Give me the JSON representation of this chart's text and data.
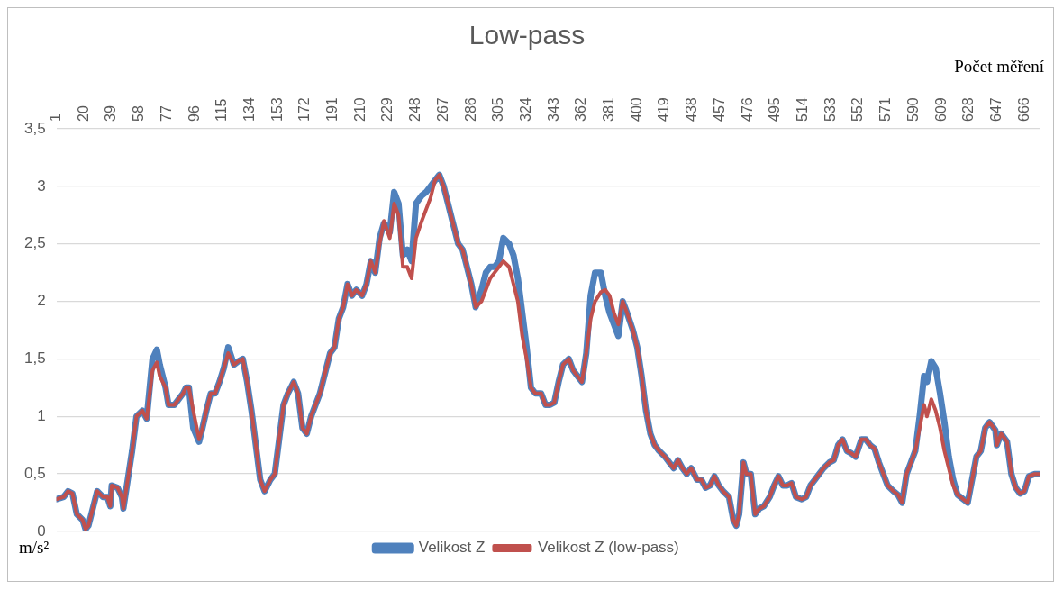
{
  "chart_data": {
    "type": "line",
    "title": "Low-pass",
    "xlabel": "Počet měření",
    "ylabel": "m/s²",
    "x": [
      1,
      6,
      9,
      12,
      15,
      19,
      21,
      23,
      27,
      29,
      33,
      36,
      38,
      39,
      43,
      46,
      47,
      50,
      53,
      56,
      60,
      63,
      67,
      70,
      72,
      76,
      78,
      82,
      85,
      88,
      90,
      92,
      95,
      99,
      101,
      104,
      107,
      110,
      113,
      116,
      119,
      123,
      126,
      129,
      132,
      135,
      138,
      141,
      144,
      148,
      151,
      154,
      157,
      160,
      164,
      167,
      170,
      173,
      176,
      179,
      182,
      186,
      189,
      192,
      195,
      198,
      201,
      204,
      207,
      211,
      214,
      217,
      220,
      223,
      226,
      230,
      233,
      236,
      239,
      242,
      245,
      248,
      252,
      255,
      258,
      261,
      264,
      267,
      270,
      274,
      277,
      280,
      283,
      286,
      289,
      293,
      296,
      299,
      302,
      305,
      308,
      312,
      315,
      318,
      321,
      324,
      327,
      330,
      334,
      337,
      340,
      343,
      346,
      349,
      353,
      356,
      359,
      362,
      365,
      368,
      371,
      375,
      378,
      381,
      384,
      387,
      390,
      393,
      397,
      400,
      403,
      406,
      409,
      412,
      415,
      419,
      422,
      425,
      428,
      431,
      434,
      437,
      441,
      444,
      447,
      450,
      453,
      456,
      459,
      463,
      466,
      468,
      470,
      473,
      475,
      478,
      481,
      484,
      487,
      491,
      494,
      497,
      500,
      503,
      506,
      509,
      513,
      516,
      519,
      522,
      525,
      528,
      532,
      535,
      538,
      541,
      544,
      547,
      550,
      554,
      557,
      560,
      563,
      566,
      569,
      572,
      576,
      579,
      582,
      585,
      588,
      591,
      594,
      597,
      599,
      602,
      605,
      608,
      611,
      614,
      617,
      620,
      624,
      627,
      630,
      633,
      636,
      639,
      642,
      646,
      647,
      650,
      654,
      657,
      660,
      663,
      666,
      669,
      673,
      676
    ],
    "series": [
      {
        "name": "Velikost Z",
        "color": "#4f81bd",
        "values": [
          0.28,
          0.3,
          0.35,
          0.33,
          0.15,
          0.1,
          0.02,
          0.05,
          0.25,
          0.35,
          0.3,
          0.3,
          0.22,
          0.4,
          0.38,
          0.3,
          0.2,
          0.45,
          0.7,
          1.0,
          1.05,
          0.98,
          1.5,
          1.58,
          1.45,
          1.25,
          1.1,
          1.1,
          1.15,
          1.2,
          1.25,
          1.25,
          0.9,
          0.78,
          0.88,
          1.05,
          1.2,
          1.2,
          1.3,
          1.42,
          1.6,
          1.45,
          1.48,
          1.5,
          1.3,
          1.05,
          0.75,
          0.45,
          0.35,
          0.45,
          0.5,
          0.8,
          1.1,
          1.2,
          1.3,
          1.2,
          0.9,
          0.85,
          1.0,
          1.1,
          1.2,
          1.4,
          1.55,
          1.6,
          1.85,
          1.95,
          2.15,
          2.05,
          2.1,
          2.05,
          2.15,
          2.35,
          2.25,
          2.55,
          2.68,
          2.6,
          2.95,
          2.85,
          2.4,
          2.45,
          2.35,
          2.85,
          2.92,
          2.95,
          3.0,
          3.05,
          3.1,
          3.0,
          2.85,
          2.65,
          2.5,
          2.45,
          2.3,
          2.15,
          1.95,
          2.1,
          2.25,
          2.3,
          2.3,
          2.35,
          2.55,
          2.5,
          2.4,
          2.2,
          1.9,
          1.6,
          1.25,
          1.2,
          1.2,
          1.1,
          1.1,
          1.12,
          1.3,
          1.45,
          1.5,
          1.4,
          1.35,
          1.3,
          1.55,
          2.05,
          2.25,
          2.25,
          2.05,
          1.9,
          1.8,
          1.7,
          2.0,
          1.9,
          1.75,
          1.6,
          1.35,
          1.05,
          0.85,
          0.75,
          0.7,
          0.65,
          0.6,
          0.55,
          0.62,
          0.55,
          0.5,
          0.55,
          0.45,
          0.45,
          0.38,
          0.4,
          0.48,
          0.4,
          0.35,
          0.3,
          0.1,
          0.05,
          0.15,
          0.6,
          0.5,
          0.5,
          0.15,
          0.2,
          0.22,
          0.3,
          0.4,
          0.48,
          0.4,
          0.4,
          0.42,
          0.3,
          0.28,
          0.3,
          0.4,
          0.45,
          0.5,
          0.55,
          0.6,
          0.62,
          0.75,
          0.8,
          0.7,
          0.68,
          0.65,
          0.8,
          0.8,
          0.75,
          0.72,
          0.6,
          0.5,
          0.4,
          0.35,
          0.32,
          0.25,
          0.5,
          0.6,
          0.7,
          1.0,
          1.35,
          1.3,
          1.48,
          1.42,
          1.2,
          0.95,
          0.65,
          0.45,
          0.32,
          0.28,
          0.25,
          0.45,
          0.65,
          0.7,
          0.9,
          0.95,
          0.88,
          0.75,
          0.85,
          0.78,
          0.5,
          0.38,
          0.33,
          0.35,
          0.48,
          0.5,
          0.5
        ]
      },
      {
        "name": "Velikost Z (low-pass)",
        "color": "#c0504d",
        "values": [
          0.28,
          0.3,
          0.35,
          0.33,
          0.15,
          0.1,
          0.02,
          0.05,
          0.25,
          0.35,
          0.3,
          0.3,
          0.22,
          0.4,
          0.38,
          0.3,
          0.2,
          0.45,
          0.7,
          1.0,
          1.05,
          0.98,
          1.4,
          1.47,
          1.35,
          1.25,
          1.1,
          1.1,
          1.15,
          1.2,
          1.25,
          1.25,
          1.05,
          0.8,
          0.88,
          1.05,
          1.2,
          1.2,
          1.3,
          1.42,
          1.55,
          1.45,
          1.48,
          1.5,
          1.3,
          1.05,
          0.75,
          0.45,
          0.35,
          0.45,
          0.5,
          0.8,
          1.1,
          1.2,
          1.3,
          1.2,
          0.9,
          0.85,
          1.0,
          1.1,
          1.2,
          1.4,
          1.55,
          1.6,
          1.85,
          1.95,
          2.15,
          2.05,
          2.1,
          2.05,
          2.15,
          2.35,
          2.25,
          2.5,
          2.7,
          2.55,
          2.85,
          2.75,
          2.3,
          2.3,
          2.2,
          2.55,
          2.7,
          2.8,
          2.9,
          3.05,
          3.1,
          3.0,
          2.85,
          2.65,
          2.5,
          2.45,
          2.3,
          2.15,
          1.95,
          2.0,
          2.1,
          2.2,
          2.25,
          2.3,
          2.35,
          2.3,
          2.15,
          2.0,
          1.7,
          1.5,
          1.25,
          1.2,
          1.2,
          1.1,
          1.1,
          1.12,
          1.3,
          1.45,
          1.5,
          1.4,
          1.35,
          1.3,
          1.55,
          1.85,
          2.0,
          2.08,
          2.1,
          2.05,
          1.9,
          1.8,
          2.0,
          1.9,
          1.75,
          1.6,
          1.35,
          1.05,
          0.85,
          0.75,
          0.7,
          0.65,
          0.6,
          0.55,
          0.62,
          0.55,
          0.5,
          0.55,
          0.45,
          0.45,
          0.38,
          0.4,
          0.48,
          0.4,
          0.35,
          0.3,
          0.1,
          0.05,
          0.15,
          0.6,
          0.5,
          0.5,
          0.15,
          0.2,
          0.22,
          0.3,
          0.4,
          0.48,
          0.4,
          0.4,
          0.42,
          0.3,
          0.28,
          0.3,
          0.4,
          0.45,
          0.5,
          0.55,
          0.6,
          0.62,
          0.75,
          0.8,
          0.7,
          0.68,
          0.65,
          0.8,
          0.8,
          0.75,
          0.72,
          0.6,
          0.5,
          0.4,
          0.35,
          0.32,
          0.25,
          0.5,
          0.6,
          0.7,
          0.9,
          1.1,
          1.0,
          1.15,
          1.05,
          0.9,
          0.7,
          0.55,
          0.4,
          0.32,
          0.28,
          0.25,
          0.45,
          0.65,
          0.7,
          0.9,
          0.95,
          0.88,
          0.75,
          0.85,
          0.78,
          0.5,
          0.38,
          0.33,
          0.35,
          0.48,
          0.5,
          0.5
        ]
      }
    ],
    "xlim": [
      1,
      677
    ],
    "xticks": [
      1,
      20,
      39,
      58,
      77,
      96,
      115,
      134,
      153,
      172,
      191,
      210,
      229,
      248,
      267,
      286,
      305,
      324,
      343,
      362,
      381,
      400,
      419,
      438,
      457,
      476,
      495,
      514,
      533,
      552,
      571,
      590,
      609,
      628,
      647,
      666
    ],
    "ylim": [
      0,
      3.5
    ],
    "yticks": [
      0,
      {
        "value": 0.5,
        "label": "0,5"
      },
      1,
      {
        "value": 1.5,
        "label": "1,5"
      },
      2,
      {
        "value": 2.5,
        "label": "2,5"
      },
      3,
      {
        "value": 3.5,
        "label": "3,5"
      }
    ],
    "grid": "y",
    "legend": "bottom",
    "marker": "none",
    "line_style": "solid"
  }
}
